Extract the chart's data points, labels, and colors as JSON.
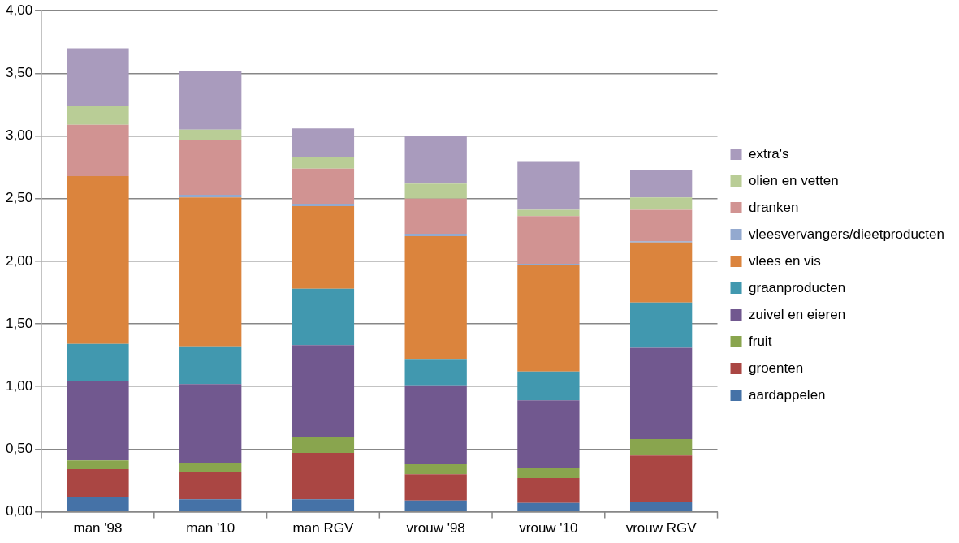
{
  "chart_data": {
    "type": "bar",
    "stacked": true,
    "categories": [
      "man '98",
      "man '10",
      "man RGV",
      "vrouw '98",
      "vrouw '10",
      "vrouw RGV"
    ],
    "series": [
      {
        "name": "aardappelen",
        "color": "#4572a7",
        "values": [
          0.12,
          0.1,
          0.1,
          0.09,
          0.07,
          0.08
        ]
      },
      {
        "name": "groenten",
        "color": "#aa4643",
        "values": [
          0.22,
          0.22,
          0.37,
          0.21,
          0.2,
          0.37
        ]
      },
      {
        "name": "fruit",
        "color": "#89a54e",
        "values": [
          0.07,
          0.07,
          0.13,
          0.08,
          0.08,
          0.13
        ]
      },
      {
        "name": "zuivel en eieren",
        "color": "#71588f",
        "values": [
          0.63,
          0.63,
          0.73,
          0.63,
          0.54,
          0.73
        ]
      },
      {
        "name": "graanproducten",
        "color": "#4198af",
        "values": [
          0.3,
          0.3,
          0.45,
          0.21,
          0.23,
          0.36
        ]
      },
      {
        "name": "vlees en vis",
        "color": "#db843d",
        "values": [
          1.34,
          1.19,
          0.66,
          0.98,
          0.85,
          0.48
        ]
      },
      {
        "name": "vleesvervangers/dieetproducten",
        "color": "#93a9cf",
        "values": [
          0.0,
          0.02,
          0.02,
          0.02,
          0.01,
          0.01
        ]
      },
      {
        "name": "dranken",
        "color": "#d19392",
        "values": [
          0.41,
          0.44,
          0.28,
          0.28,
          0.38,
          0.25
        ]
      },
      {
        "name": "olien en vetten",
        "color": "#b9cd96",
        "values": [
          0.15,
          0.08,
          0.09,
          0.12,
          0.05,
          0.1
        ]
      },
      {
        "name": "extra's",
        "color": "#a99bbd",
        "values": [
          0.46,
          0.47,
          0.23,
          0.38,
          0.39,
          0.22
        ]
      }
    ],
    "ylim": [
      0,
      4
    ],
    "yticks": [
      {
        "value": 0,
        "label": "0,00"
      },
      {
        "value": 0.5,
        "label": "0,50"
      },
      {
        "value": 1,
        "label": "1,00"
      },
      {
        "value": 1.5,
        "label": "1,50"
      },
      {
        "value": 2,
        "label": "2,00"
      },
      {
        "value": 2.5,
        "label": "2,50"
      },
      {
        "value": 3,
        "label": "3,00"
      },
      {
        "value": 3.5,
        "label": "3,50"
      },
      {
        "value": 4,
        "label": "4,00"
      }
    ],
    "grid": "y",
    "legend": "right"
  }
}
